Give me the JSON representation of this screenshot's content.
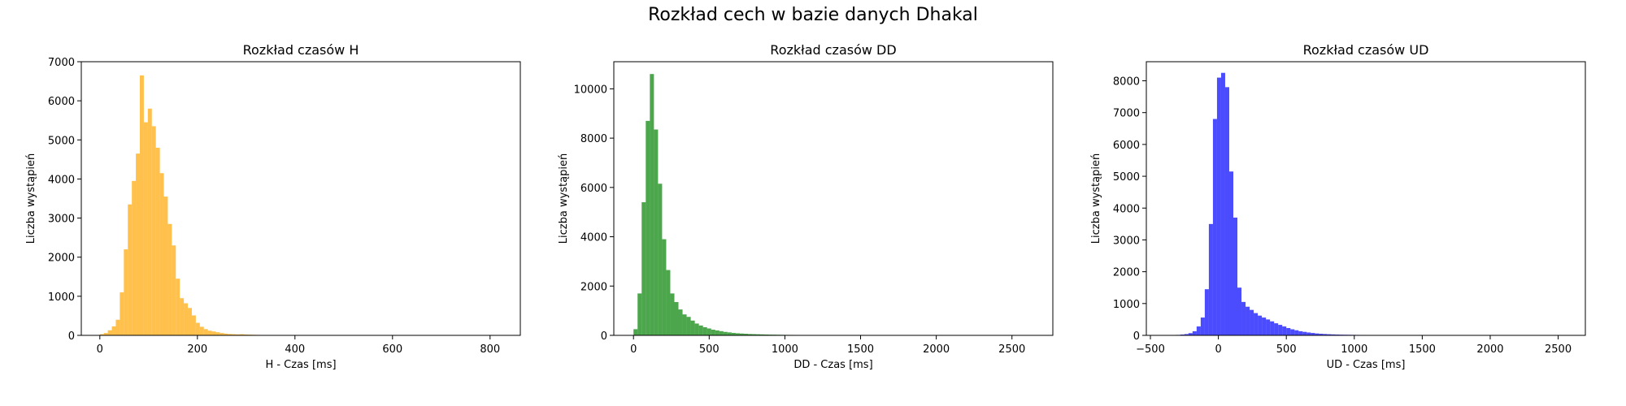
{
  "figure": {
    "suptitle": "Rozkład cech w bazie danych Dhakal"
  },
  "chart_data": [
    {
      "type": "bar",
      "subtype": "histogram",
      "title": "Rozkład czasów H",
      "xlabel": "H - Czas [ms]",
      "ylabel": "Liczba wystąpień",
      "color": "#FFA500",
      "opacity": 0.7,
      "xlim": [
        -38,
        862
      ],
      "ylim": [
        0,
        7000
      ],
      "xticks": [
        0,
        200,
        400,
        600,
        800
      ],
      "yticks": [
        0,
        1000,
        2000,
        3000,
        4000,
        5000,
        6000,
        7000
      ],
      "bin_width": 8.2,
      "bin_start": 0,
      "values": [
        30,
        60,
        130,
        230,
        400,
        1100,
        2200,
        3350,
        3950,
        4650,
        6650,
        5450,
        5800,
        5350,
        4800,
        4150,
        3550,
        2850,
        2300,
        1450,
        950,
        820,
        700,
        510,
        320,
        220,
        160,
        120,
        100,
        80,
        60,
        45,
        35,
        30,
        25,
        30,
        22,
        18,
        15,
        12,
        10,
        8,
        10,
        9,
        7,
        6,
        5,
        5,
        4,
        4,
        3,
        3,
        3,
        2,
        2,
        2,
        2,
        2,
        1,
        1,
        1,
        1,
        1,
        1,
        1,
        1,
        1,
        1,
        1,
        1,
        1,
        1,
        1,
        1,
        1,
        1,
        1,
        1,
        1,
        1,
        1,
        1,
        1,
        1,
        1,
        1,
        1,
        1,
        1,
        1,
        1,
        1,
        1,
        1,
        1,
        1,
        1,
        1,
        1,
        1
      ]
    },
    {
      "type": "bar",
      "subtype": "histogram",
      "title": "Rozkład czasów DD",
      "xlabel": "DD - Czas [ms]",
      "ylabel": "Liczba wystąpień",
      "color": "#008000",
      "opacity": 0.7,
      "xlim": [
        -130,
        2770
      ],
      "ylim": [
        0,
        11100
      ],
      "xticks": [
        0,
        500,
        1000,
        1500,
        2000,
        2500
      ],
      "yticks": [
        0,
        2000,
        4000,
        6000,
        8000,
        10000
      ],
      "bin_width": 27,
      "bin_start": 0,
      "values": [
        250,
        1700,
        5400,
        8700,
        10600,
        8350,
        6150,
        3900,
        2650,
        1700,
        1350,
        1050,
        850,
        750,
        600,
        480,
        400,
        330,
        280,
        230,
        200,
        170,
        140,
        120,
        100,
        85,
        75,
        65,
        55,
        50,
        45,
        40,
        35,
        30,
        28,
        25,
        22,
        20,
        18,
        17,
        16,
        15,
        14,
        13,
        12,
        11,
        10,
        9,
        8,
        8,
        7,
        7,
        6,
        6,
        5,
        5,
        5,
        4,
        4,
        4,
        3,
        3,
        3,
        3,
        2,
        2,
        2,
        2,
        2,
        2,
        2,
        2,
        2,
        1,
        1,
        1,
        1,
        1,
        1,
        1,
        1,
        1,
        1,
        1,
        1,
        1,
        1,
        1,
        1,
        1,
        1,
        1,
        1,
        1,
        1,
        1,
        1,
        1,
        1,
        1
      ]
    },
    {
      "type": "bar",
      "subtype": "histogram",
      "title": "Rozkład czasów UD",
      "xlabel": "UD - Czas [ms]",
      "ylabel": "Liczba wystąpień",
      "color": "#0000FF",
      "opacity": 0.7,
      "xlim": [
        -530,
        2700
      ],
      "ylim": [
        0,
        8600
      ],
      "xticks": [
        -500,
        0,
        500,
        1000,
        1500,
        2000,
        2500
      ],
      "yticks": [
        0,
        1000,
        2000,
        3000,
        4000,
        5000,
        6000,
        7000,
        8000
      ],
      "bin_width": 30,
      "bin_start": -370,
      "values": [
        5,
        10,
        15,
        25,
        40,
        70,
        130,
        280,
        560,
        1450,
        3500,
        6800,
        8100,
        8250,
        7800,
        5150,
        3700,
        1500,
        1050,
        900,
        800,
        700,
        620,
        560,
        500,
        440,
        380,
        330,
        280,
        230,
        190,
        160,
        130,
        110,
        90,
        75,
        60,
        50,
        42,
        36,
        30,
        25,
        22,
        20,
        18,
        16,
        14,
        12,
        10,
        9,
        8,
        7,
        6,
        5,
        4,
        4,
        3,
        3,
        3,
        2,
        2,
        2,
        2,
        2,
        1,
        1,
        1,
        1,
        1,
        1,
        1,
        1,
        1,
        1,
        1,
        1,
        1,
        1,
        1,
        1,
        1,
        1,
        1,
        1,
        1,
        1,
        1,
        1,
        1,
        1,
        1,
        1,
        1,
        1,
        1,
        1,
        1,
        1,
        1,
        1
      ]
    }
  ]
}
